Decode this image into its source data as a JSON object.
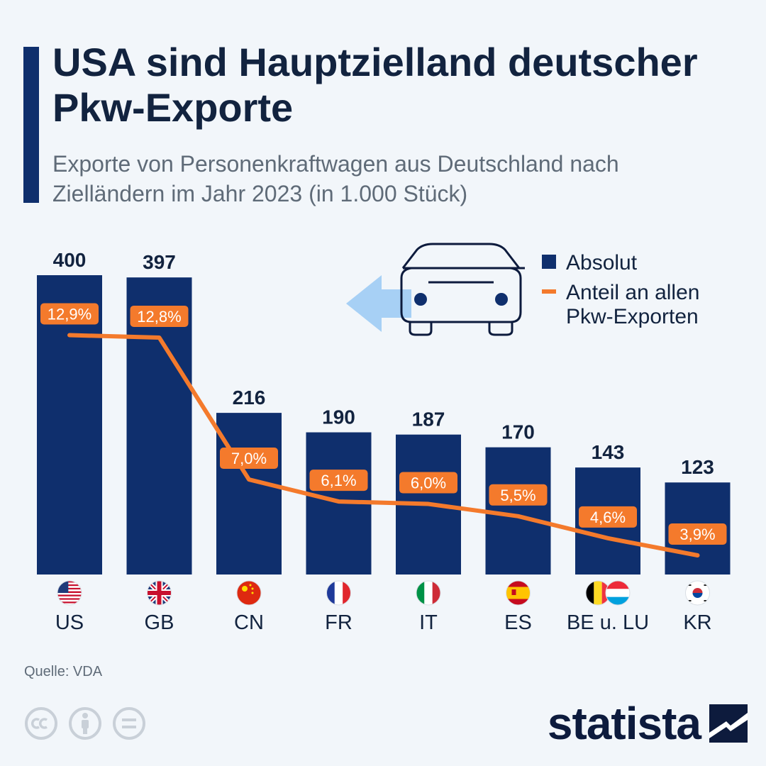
{
  "header": {
    "title": "USA sind Hauptzielland deutscher Pkw-Exporte",
    "subtitle": "Exporte von Personenkraftwagen aus Deutschland nach Zielländern im Jahr 2023 (in 1.000 Stück)"
  },
  "footer": {
    "source": "Quelle: VDA",
    "brand": "statista",
    "license_icons": [
      "creative-commons-icon",
      "attribution-icon",
      "no-derivatives-icon"
    ]
  },
  "colors": {
    "bar": "#0f2f6d",
    "line": "#f47a2c",
    "label_badge": "#f47a2c",
    "arrow": "#a7d0f5",
    "background": "#f2f6fa"
  },
  "chart_data": {
    "type": "bar",
    "title": "",
    "xlabel": "",
    "ylabel": "",
    "categories": [
      "US",
      "GB",
      "CN",
      "FR",
      "IT",
      "ES",
      "BE u. LU",
      "KR"
    ],
    "flags": [
      "us",
      "gb",
      "cn",
      "fr",
      "it",
      "es",
      "be-lu",
      "kr"
    ],
    "ylim": [
      0,
      400
    ],
    "series": [
      {
        "name": "Absolut",
        "type": "bar",
        "values": [
          400,
          397,
          216,
          190,
          187,
          170,
          143,
          123
        ],
        "labels": [
          "400",
          "397",
          "216",
          "190",
          "187",
          "170",
          "143",
          "123"
        ]
      },
      {
        "name": "Anteil an allen Pkw-Exporten",
        "type": "line",
        "unit": "%",
        "values": [
          12.9,
          12.8,
          7.0,
          6.1,
          6.0,
          5.5,
          4.6,
          3.9
        ],
        "labels": [
          "12,9%",
          "12,8%",
          "7,0%",
          "6,1%",
          "6,0%",
          "5,5%",
          "4,6%",
          "3,9%"
        ]
      }
    ],
    "legend": {
      "placement": "top-right",
      "items": [
        "Absolut",
        "Anteil an allen",
        "Pkw-Exporten"
      ]
    },
    "grid": false
  }
}
